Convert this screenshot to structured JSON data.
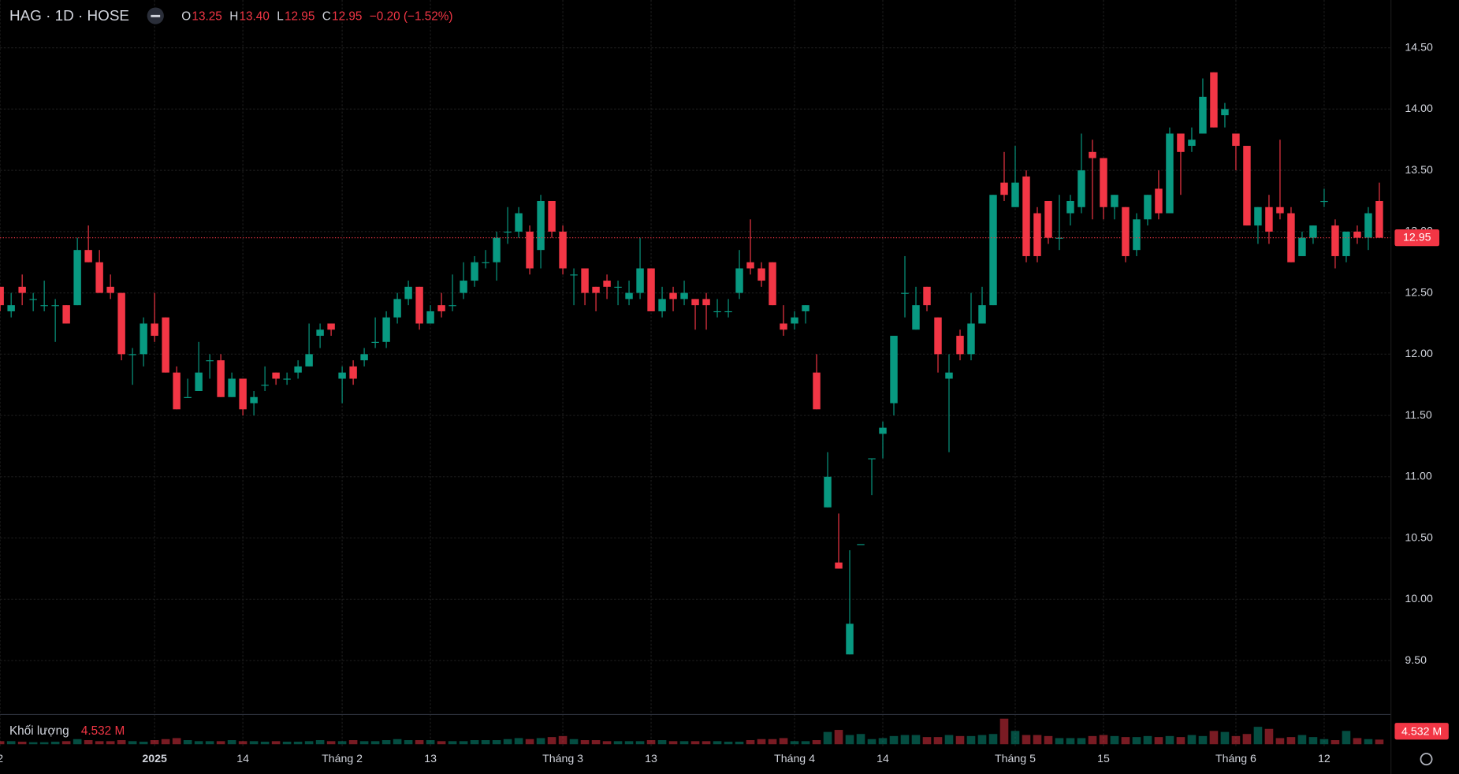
{
  "header": {
    "symbol": "HAG · 1D · HOSE",
    "ohlc": [
      {
        "key": "O",
        "value": "13.25"
      },
      {
        "key": "H",
        "value": "13.40"
      },
      {
        "key": "L",
        "value": "12.95"
      },
      {
        "key": "C",
        "value": "12.95"
      }
    ],
    "change": "−0.20 (−1.52%)"
  },
  "chart_data": {
    "type": "candlestick",
    "categories": [
      "2",
      null,
      null,
      null,
      null,
      null,
      null,
      null,
      null,
      null,
      null,
      null,
      null,
      null,
      "2025",
      null,
      null,
      null,
      null,
      null,
      null,
      null,
      "14",
      null,
      null,
      null,
      null,
      null,
      null,
      null,
      null,
      "Tháng 2",
      null,
      null,
      null,
      null,
      null,
      null,
      null,
      "13",
      null,
      null,
      null,
      null,
      null,
      null,
      null,
      null,
      null,
      null,
      null,
      "Tháng 3",
      null,
      null,
      null,
      null,
      null,
      null,
      null,
      "13",
      null,
      null,
      null,
      null,
      null,
      null,
      null,
      null,
      null,
      null,
      null,
      null,
      "Tháng 4",
      null,
      null,
      null,
      null,
      null,
      null,
      null,
      "14",
      null,
      null,
      null,
      null,
      null,
      null,
      null,
      null,
      null,
      null,
      null,
      "Tháng 5",
      null,
      null,
      null,
      null,
      null,
      null,
      null,
      "15",
      null,
      null,
      null,
      null,
      null,
      null,
      null,
      null,
      null,
      null,
      null,
      "Tháng 6",
      null,
      null,
      null,
      null,
      null,
      null,
      null,
      "12",
      null,
      null,
      null,
      null,
      null
    ],
    "open": [
      12.55,
      12.35,
      12.55,
      12.45,
      12.4,
      12.4,
      12.4,
      12.4,
      12.85,
      12.75,
      12.55,
      12.5,
      12.0,
      12.0,
      12.25,
      12.3,
      11.85,
      11.65,
      11.7,
      11.95,
      11.95,
      11.65,
      11.8,
      11.6,
      11.75,
      11.85,
      11.8,
      11.85,
      11.9,
      12.15,
      12.25,
      11.8,
      11.9,
      11.95,
      12.1,
      12.1,
      12.3,
      12.45,
      12.55,
      12.25,
      12.4,
      12.4,
      12.5,
      12.6,
      12.75,
      12.75,
      13.0,
      13.0,
      13.0,
      12.85,
      13.25,
      13.0,
      12.65,
      12.7,
      12.55,
      12.6,
      12.55,
      12.45,
      12.5,
      12.7,
      12.35,
      12.5,
      12.45,
      12.45,
      12.45,
      12.35,
      12.35,
      12.5,
      12.75,
      12.7,
      12.75,
      12.25,
      12.25,
      12.35,
      11.85,
      10.75,
      10.3,
      9.55,
      10.45,
      11.15,
      11.35,
      11.6,
      12.5,
      12.2,
      12.55,
      12.3,
      11.8,
      12.15,
      12.0,
      12.25,
      12.4,
      13.4,
      13.2,
      13.45,
      13.15,
      13.25,
      12.95,
      13.15,
      13.2,
      13.65,
      13.6,
      13.2,
      13.2,
      12.85,
      13.1,
      13.35,
      13.15,
      13.8,
      13.7,
      13.8,
      14.3,
      13.95,
      13.8,
      13.7,
      13.05,
      13.2,
      13.2,
      13.15,
      12.8,
      12.95,
      13.25,
      13.05,
      12.8,
      13.0,
      12.95,
      13.25
    ],
    "high": [
      12.55,
      12.5,
      12.65,
      12.5,
      12.6,
      12.45,
      12.4,
      12.95,
      13.05,
      12.85,
      12.65,
      12.5,
      12.05,
      12.3,
      12.5,
      12.3,
      11.9,
      11.8,
      12.1,
      12.0,
      12.0,
      11.85,
      11.8,
      11.7,
      11.9,
      11.85,
      11.85,
      11.95,
      12.25,
      12.25,
      12.25,
      11.9,
      11.95,
      12.05,
      12.3,
      12.35,
      12.5,
      12.6,
      12.55,
      12.4,
      12.5,
      12.65,
      12.75,
      12.8,
      12.85,
      13.0,
      13.2,
      13.2,
      13.05,
      13.3,
      13.25,
      13.05,
      12.7,
      12.7,
      12.55,
      12.65,
      12.6,
      12.6,
      12.95,
      12.7,
      12.55,
      12.55,
      12.6,
      12.45,
      12.5,
      12.45,
      12.45,
      12.85,
      13.1,
      12.75,
      12.75,
      12.4,
      12.35,
      12.4,
      12.0,
      11.2,
      10.7,
      10.4,
      10.45,
      11.15,
      11.45,
      12.15,
      12.8,
      12.55,
      12.55,
      12.3,
      12.0,
      12.2,
      12.5,
      12.55,
      13.3,
      13.65,
      13.7,
      13.5,
      13.2,
      13.25,
      13.3,
      13.3,
      13.8,
      13.75,
      13.6,
      13.3,
      13.2,
      13.15,
      13.3,
      13.5,
      13.85,
      13.8,
      13.85,
      14.25,
      14.3,
      14.05,
      13.8,
      13.7,
      13.2,
      13.3,
      13.75,
      13.2,
      13.0,
      13.05,
      13.35,
      13.1,
      13.0,
      13.05,
      13.2,
      13.4
    ],
    "low": [
      12.35,
      12.3,
      12.4,
      12.35,
      12.35,
      12.1,
      12.25,
      12.4,
      12.75,
      12.5,
      12.45,
      11.95,
      11.75,
      11.9,
      12.1,
      11.85,
      11.55,
      11.65,
      11.7,
      11.8,
      11.65,
      11.65,
      11.5,
      11.5,
      11.7,
      11.75,
      11.75,
      11.8,
      11.9,
      12.05,
      12.15,
      11.6,
      11.75,
      11.9,
      12.05,
      12.05,
      12.25,
      12.4,
      12.2,
      12.25,
      12.3,
      12.35,
      12.45,
      12.55,
      12.7,
      12.6,
      12.9,
      12.95,
      12.65,
      12.7,
      12.95,
      12.65,
      12.4,
      12.4,
      12.35,
      12.45,
      12.4,
      12.4,
      12.45,
      12.35,
      12.3,
      12.35,
      12.4,
      12.2,
      12.2,
      12.3,
      12.3,
      12.45,
      12.65,
      12.55,
      12.4,
      12.15,
      12.2,
      12.25,
      11.55,
      10.75,
      10.25,
      9.55,
      10.45,
      10.85,
      11.15,
      11.5,
      12.3,
      12.2,
      12.35,
      11.85,
      11.2,
      11.95,
      11.95,
      12.25,
      12.4,
      13.25,
      13.2,
      12.75,
      12.75,
      12.9,
      12.85,
      13.05,
      13.15,
      13.1,
      13.1,
      13.1,
      12.75,
      12.8,
      13.05,
      13.1,
      13.15,
      13.3,
      13.65,
      13.8,
      13.85,
      13.85,
      13.5,
      13.05,
      12.9,
      12.9,
      13.1,
      12.75,
      12.8,
      12.9,
      13.2,
      12.7,
      12.75,
      12.9,
      12.85,
      12.95
    ],
    "close": [
      12.4,
      12.4,
      12.5,
      12.45,
      12.4,
      12.4,
      12.25,
      12.85,
      12.75,
      12.5,
      12.5,
      12.0,
      12.0,
      12.25,
      12.15,
      11.85,
      11.55,
      11.65,
      11.85,
      11.95,
      11.65,
      11.8,
      11.55,
      11.65,
      11.75,
      11.8,
      11.8,
      11.9,
      12.0,
      12.2,
      12.2,
      11.85,
      11.8,
      12.0,
      12.1,
      12.3,
      12.45,
      12.55,
      12.25,
      12.35,
      12.35,
      12.4,
      12.6,
      12.75,
      12.75,
      12.95,
      13.0,
      13.15,
      12.7,
      13.25,
      13.0,
      12.7,
      12.65,
      12.5,
      12.5,
      12.55,
      12.55,
      12.5,
      12.7,
      12.35,
      12.45,
      12.45,
      12.5,
      12.4,
      12.4,
      12.35,
      12.35,
      12.7,
      12.7,
      12.6,
      12.4,
      12.2,
      12.3,
      12.4,
      11.55,
      11.0,
      10.25,
      9.8,
      10.45,
      11.15,
      11.4,
      12.15,
      12.5,
      12.4,
      12.4,
      12.0,
      11.85,
      12.0,
      12.25,
      12.4,
      13.3,
      13.3,
      13.4,
      12.8,
      12.8,
      12.95,
      12.95,
      13.25,
      13.5,
      13.6,
      13.2,
      13.3,
      12.8,
      13.1,
      13.3,
      13.15,
      13.8,
      13.65,
      13.75,
      14.1,
      13.85,
      14.0,
      13.7,
      13.05,
      13.2,
      13.0,
      13.15,
      12.75,
      12.95,
      13.05,
      13.25,
      12.8,
      13.0,
      12.95,
      13.15,
      12.95
    ],
    "volume": [
      3,
      3,
      2.5,
      2,
      2,
      2.5,
      3,
      5,
      4,
      3,
      3,
      4,
      3,
      2.5,
      4,
      5,
      6,
      4,
      3,
      3,
      3,
      4,
      3,
      3,
      2.5,
      3,
      2.5,
      2.5,
      3,
      4,
      3,
      3,
      4,
      3,
      3,
      4,
      5,
      4,
      4,
      4,
      3,
      3,
      3,
      4,
      4,
      4,
      5,
      6,
      5,
      6,
      7,
      8,
      5,
      4,
      4,
      3,
      3,
      3,
      3,
      4,
      4,
      3,
      3,
      3,
      3,
      3,
      2.5,
      2.5,
      4,
      5,
      5,
      6,
      3,
      3,
      4,
      12,
      14,
      9,
      10,
      5,
      6,
      8,
      9,
      9,
      7,
      7,
      9,
      8,
      8,
      9,
      10,
      25,
      13,
      9,
      9,
      8,
      6,
      6,
      6,
      8,
      9,
      8,
      7,
      7,
      8,
      7,
      8,
      7,
      9,
      8,
      13,
      12,
      8,
      10,
      17,
      15,
      6,
      7,
      9,
      7,
      5,
      4,
      13,
      6,
      5,
      4.532
    ],
    "ylim": [
      9.06,
      14.89
    ],
    "yticks": [
      {
        "value": 9.5,
        "label": "9.50"
      },
      {
        "value": 10,
        "label": "10.00"
      },
      {
        "value": 10.5,
        "label": "10.50"
      },
      {
        "value": 11,
        "label": "11.00"
      },
      {
        "value": 11.5,
        "label": "11.50"
      },
      {
        "value": 12,
        "label": "12.00"
      },
      {
        "value": 12.5,
        "label": "12.50"
      },
      {
        "value": 13,
        "label": "13.00"
      },
      {
        "value": 13.5,
        "label": "13.50"
      },
      {
        "value": 14,
        "label": "14.00"
      },
      {
        "value": 14.5,
        "label": "14.50"
      }
    ],
    "last_price": 12.95,
    "volume_title": "Khối lượng",
    "volume_tag": "4.532 M",
    "up_color": "#089981",
    "down_color": "#f23645",
    "grid": true
  }
}
